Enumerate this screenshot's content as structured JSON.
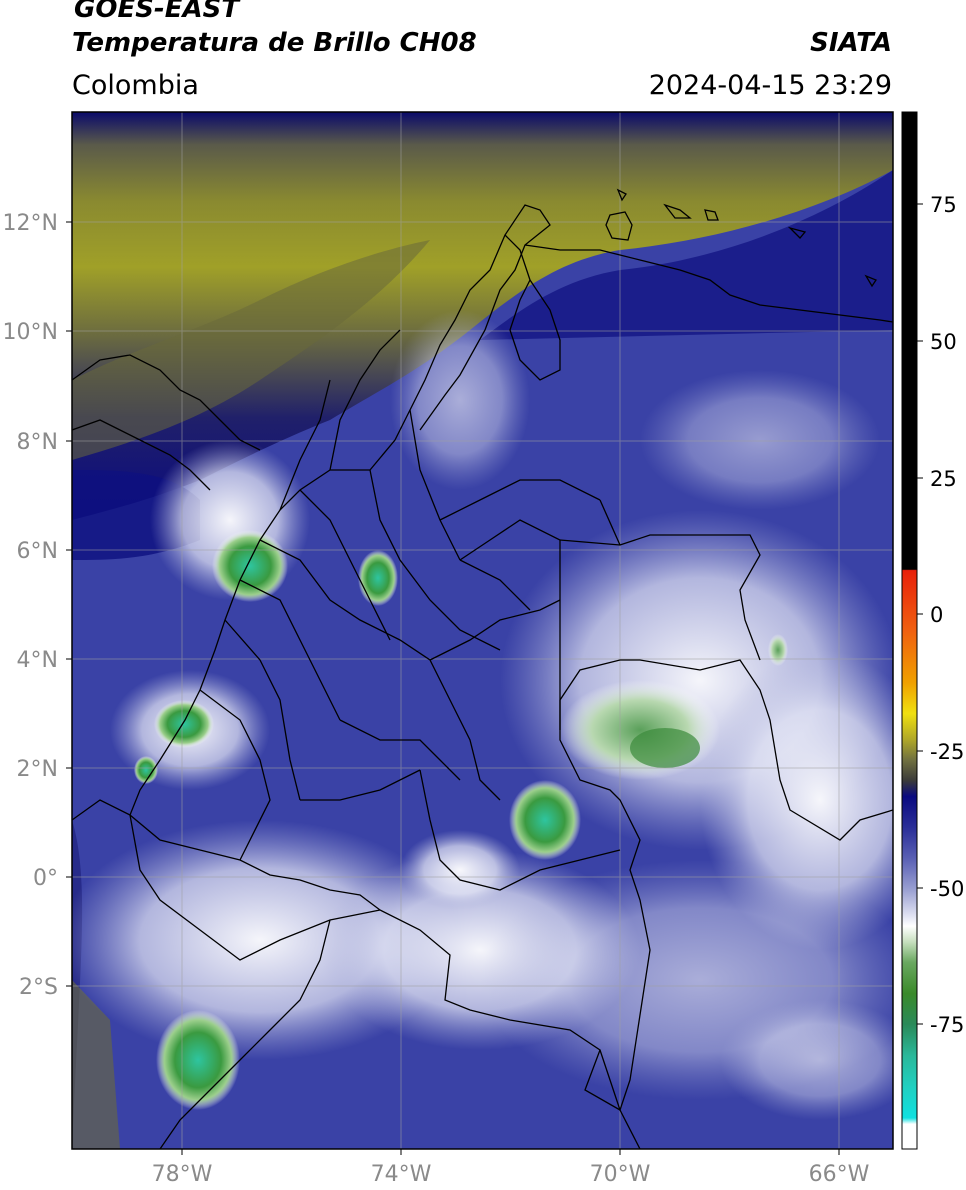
{
  "header": {
    "satellite": "GOES-EAST",
    "product": "Temperatura de Brillo CH08",
    "region": "Colombia",
    "agency": "SIATA",
    "datetime": "2024-04-15 23:29"
  },
  "map": {
    "lon_range": [
      -80,
      -65
    ],
    "lat_range": [
      -5,
      14
    ],
    "lat_ticks": [
      "12°N",
      "10°N",
      "8°N",
      "6°N",
      "4°N",
      "2°N",
      "0°",
      "2°S"
    ],
    "lon_ticks": [
      "78°W",
      "74°W",
      "70°W",
      "66°W"
    ]
  },
  "colorbar": {
    "ticks": [
      "75",
      "50",
      "25",
      "0",
      "-25",
      "-50",
      "-75"
    ],
    "colors": {
      "black": "#000000",
      "red": "#e8200a",
      "orange": "#f08a00",
      "yellow": "#f0e010",
      "olive": "#8c8c2a",
      "gray": "#5a5a5a",
      "navy": "#0a0a80",
      "blue": "#3c44a8",
      "lavender": "#b0b4dc",
      "white": "#ffffff",
      "green": "#3a8a2a",
      "teal": "#2ab89a",
      "cyan": "#10e0e0"
    }
  }
}
